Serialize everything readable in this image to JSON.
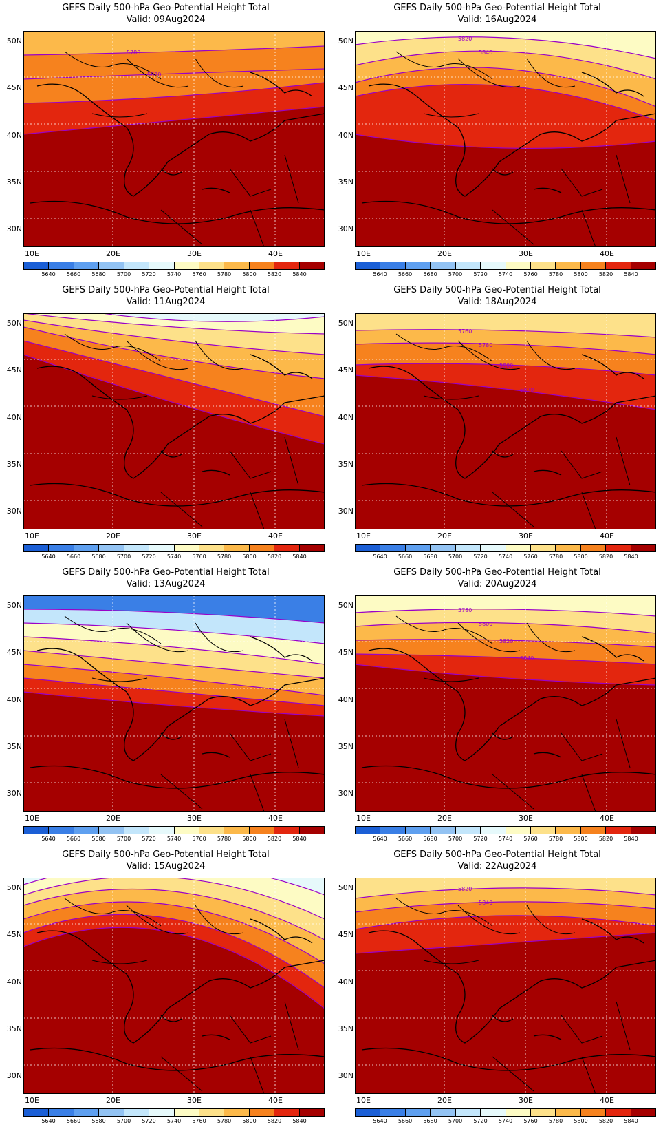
{
  "panels": [
    {
      "title": "GEFS Daily 500-hPa Geo-Potential Height Total",
      "valid": "Valid: 09Aug2024",
      "labels": [
        "5780",
        "5820"
      ]
    },
    {
      "title": "GEFS Daily 500-hPa Geo-Potential Height Total",
      "valid": "Valid: 16Aug2024",
      "labels": [
        "5820",
        "5840"
      ]
    },
    {
      "title": "GEFS Daily 500-hPa Geo-Potential Height Total",
      "valid": "Valid: 11Aug2024",
      "labels": []
    },
    {
      "title": "GEFS Daily 500-hPa Geo-Potential Height Total",
      "valid": "Valid: 18Aug2024",
      "labels": [
        "5760",
        "5780",
        "5800",
        "5820"
      ]
    },
    {
      "title": "GEFS Daily 500-hPa Geo-Potential Height Total",
      "valid": "Valid: 13Aug2024",
      "labels": []
    },
    {
      "title": "GEFS Daily 500-hPa Geo-Potential Height Total",
      "valid": "Valid: 20Aug2024",
      "labels": [
        "5780",
        "5800",
        "5820",
        "5840"
      ]
    },
    {
      "title": "GEFS Daily 500-hPa Geo-Potential Height Total",
      "valid": "Valid: 15Aug2024",
      "labels": []
    },
    {
      "title": "GEFS Daily 500-hPa Geo-Potential Height Total",
      "valid": "Valid: 22Aug2024",
      "labels": [
        "5820",
        "5840"
      ]
    }
  ],
  "lat_labels": [
    "50N",
    "45N",
    "40N",
    "35N",
    "30N"
  ],
  "lon_labels": [
    "10E",
    "20E",
    "30E",
    "40E"
  ],
  "colorbar": {
    "labels": [
      "5640",
      "5660",
      "5680",
      "5700",
      "5720",
      "5740",
      "5760",
      "5780",
      "5800",
      "5820",
      "5840"
    ],
    "colors": [
      "#1b5fd6",
      "#3a7fe6",
      "#5fa0f0",
      "#93c3f3",
      "#c3e6fb",
      "#e6f9fb",
      "#fdfbc4",
      "#fde18a",
      "#fcb94a",
      "#f6821e",
      "#e3260e",
      "#a50000"
    ]
  },
  "contour_color": "#9a00c8",
  "land_color": "#a50000"
}
